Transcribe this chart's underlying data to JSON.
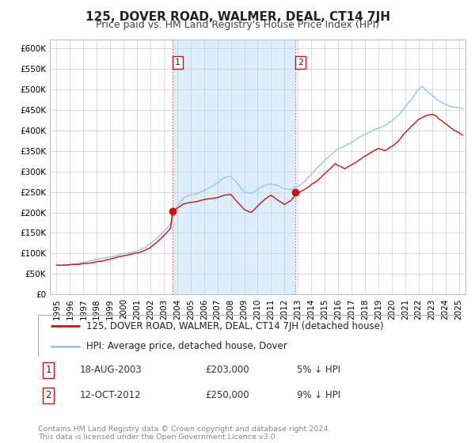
{
  "title": "125, DOVER ROAD, WALMER, DEAL, CT14 7JH",
  "subtitle": "Price paid vs. HM Land Registry's House Price Index (HPI)",
  "xlim": [
    1994.5,
    2025.5
  ],
  "ylim": [
    0,
    620000
  ],
  "yticks": [
    0,
    50000,
    100000,
    150000,
    200000,
    250000,
    300000,
    350000,
    400000,
    450000,
    500000,
    550000,
    600000
  ],
  "ytick_labels": [
    "£0",
    "£50K",
    "£100K",
    "£150K",
    "£200K",
    "£250K",
    "£300K",
    "£350K",
    "£400K",
    "£450K",
    "£500K",
    "£550K",
    "£600K"
  ],
  "xticks": [
    1995,
    1996,
    1997,
    1998,
    1999,
    2000,
    2001,
    2002,
    2003,
    2004,
    2005,
    2006,
    2007,
    2008,
    2009,
    2010,
    2011,
    2012,
    2013,
    2014,
    2015,
    2016,
    2017,
    2018,
    2019,
    2020,
    2021,
    2022,
    2023,
    2024,
    2025
  ],
  "sale1_x": 2003.63,
  "sale1_y": 203000,
  "sale1_label": "1",
  "sale1_date": "18-AUG-2003",
  "sale1_price": "£203,000",
  "sale1_hpi": "5% ↓ HPI",
  "sale2_x": 2012.79,
  "sale2_y": 250000,
  "sale2_label": "2",
  "sale2_date": "12-OCT-2012",
  "sale2_price": "£250,000",
  "sale2_hpi": "9% ↓ HPI",
  "red_line_color": "#cc1111",
  "blue_line_color": "#99c4e8",
  "dot_color": "#cc1111",
  "vline_color": "#dd6666",
  "shade_color": "#ddeeff",
  "legend_label_red": "125, DOVER ROAD, WALMER, DEAL, CT14 7JH (detached house)",
  "legend_label_blue": "HPI: Average price, detached house, Dover",
  "footer": "Contains HM Land Registry data © Crown copyright and database right 2024.\nThis data is licensed under the Open Government Licence v3.0.",
  "background_color": "#ffffff",
  "grid_color": "#cccccc",
  "title_fontsize": 11,
  "subtitle_fontsize": 9,
  "tick_fontsize": 7.5,
  "legend_fontsize": 8.5
}
